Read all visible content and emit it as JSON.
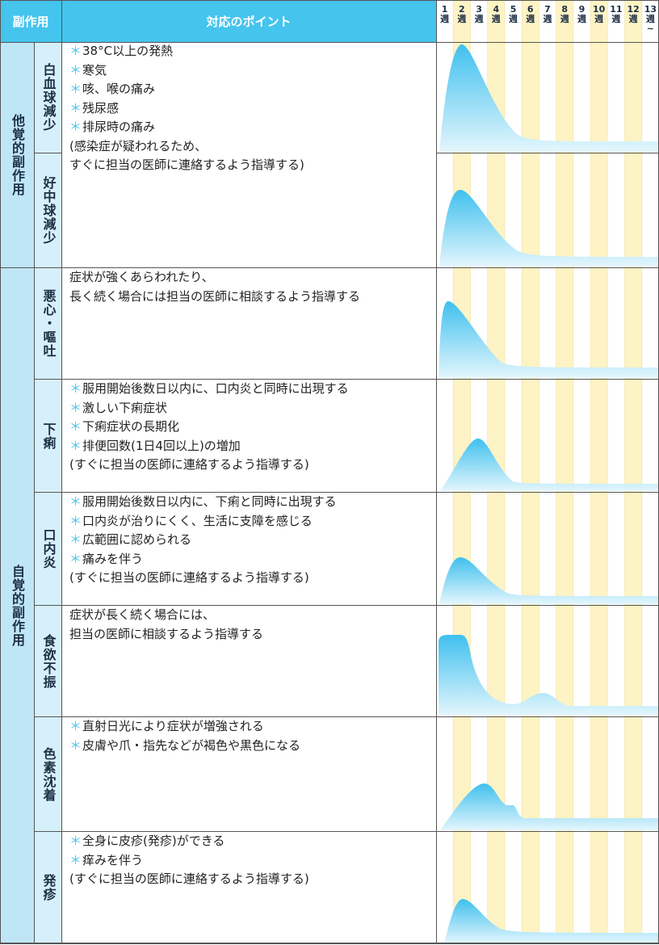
{
  "header": {
    "category": "副作用",
    "points": "対応のポイント",
    "weeks": [
      "1",
      "2",
      "3",
      "4",
      "5",
      "6",
      "7",
      "8",
      "9",
      "10",
      "11",
      "12",
      "13"
    ],
    "unit": "週",
    "last_suffix": "~"
  },
  "groups": [
    {
      "label": "他覚的副作用",
      "rows": [
        {
          "name": "白血球減少"
        },
        {
          "name": "好中球減少"
        }
      ],
      "points": [
        {
          "mark": "＊",
          "text": "38°C以上の発熱"
        },
        {
          "mark": "＊",
          "text": "寒気"
        },
        {
          "mark": "＊",
          "text": "咳、喉の痛み"
        },
        {
          "mark": "＊",
          "text": "残尿感"
        },
        {
          "mark": "＊",
          "text": "排尿時の痛み"
        },
        {
          "text": "(感染症が疑われるため、"
        },
        {
          "text": "すぐに担当の医師に連絡するよう指導する)"
        }
      ]
    },
    {
      "label": "自覚的副作用",
      "rows": [
        {
          "name": "悪心・嘔吐",
          "points": [
            {
              "text": "症状が強くあらわれたり、"
            },
            {
              "text": "長く続く場合には担当の医師に相談するよう指導する"
            }
          ]
        },
        {
          "name": "下痢",
          "points": [
            {
              "mark": "＊",
              "text": "服用開始後数日以内に、口内炎と同時に出現する"
            },
            {
              "mark": "＊",
              "text": "激しい下痢症状"
            },
            {
              "mark": "＊",
              "text": "下痢症状の長期化"
            },
            {
              "mark": "＊",
              "text": "排便回数(1日4回以上)の増加"
            },
            {
              "text": "(すぐに担当の医師に連絡するよう指導する)"
            }
          ]
        },
        {
          "name": "口内炎",
          "points": [
            {
              "mark": "＊",
              "text": "服用開始後数日以内に、下痢と同時に出現する"
            },
            {
              "mark": "＊",
              "text": "口内炎が治りにくく、生活に支障を感じる"
            },
            {
              "mark": "＊",
              "text": "広範囲に認められる"
            },
            {
              "mark": "＊",
              "text": "痛みを伴う"
            },
            {
              "text": "(すぐに担当の医師に連絡するよう指導する)"
            }
          ]
        },
        {
          "name": "食欲不振",
          "points": [
            {
              "text": "症状が長く続く場合には、"
            },
            {
              "text": "担当の医師に相談するよう指導する"
            }
          ]
        },
        {
          "name": "色素沈着",
          "points": [
            {
              "mark": "＊",
              "text": "直射日光により症状が増強される"
            },
            {
              "mark": "＊",
              "text": "皮膚や爪・指先などが褐色や黒色になる"
            }
          ]
        },
        {
          "name": "発疹",
          "points": [
            {
              "mark": "＊",
              "text": "全身に皮疹(発疹)ができる"
            },
            {
              "mark": "＊",
              "text": "痒みを伴う"
            },
            {
              "text": "(すぐに担当の医師に連絡するよう指導する)"
            }
          ]
        }
      ]
    }
  ]
}
